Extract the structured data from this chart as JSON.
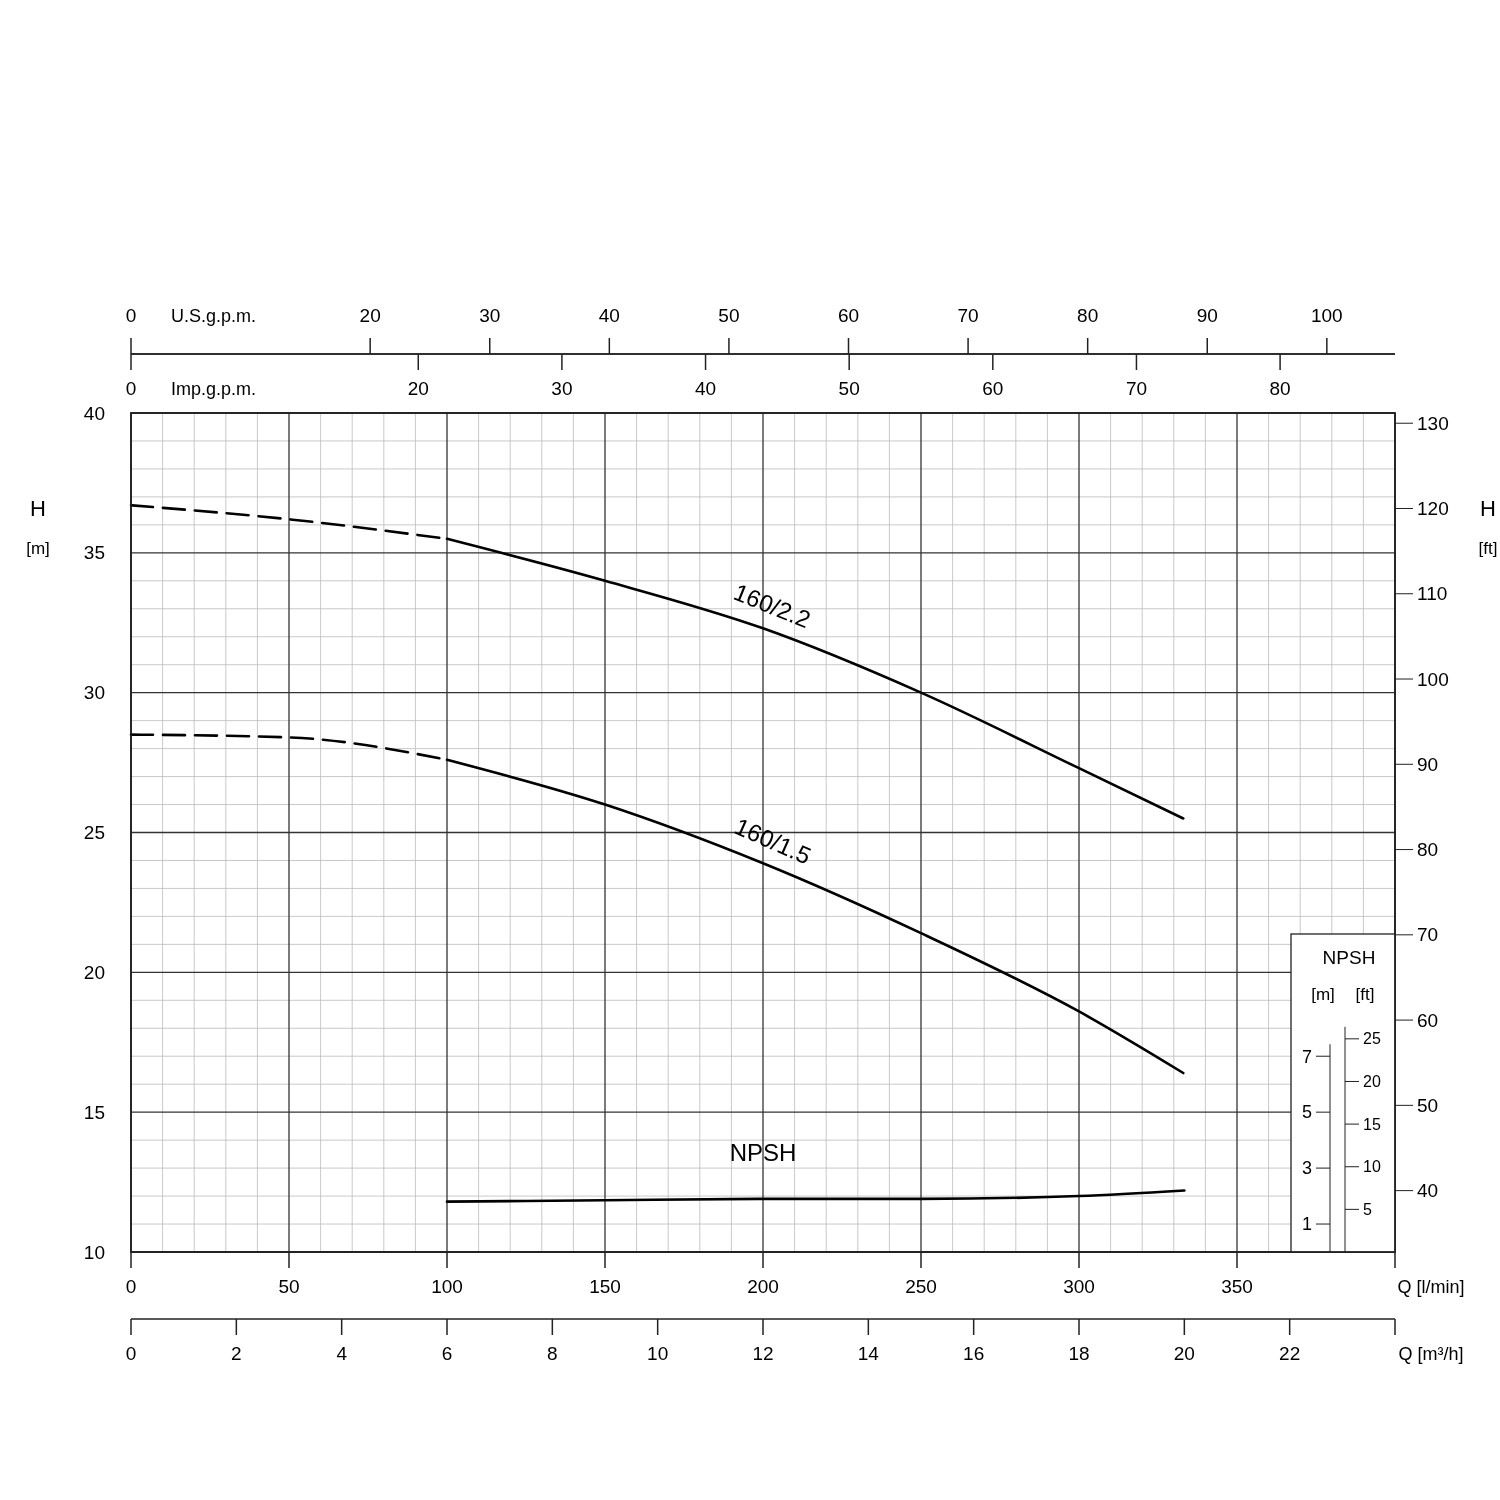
{
  "chart_data": [
    {
      "type": "line",
      "xlabel": "Q [l/min]",
      "x2label": "U.S.g.p.m.",
      "ylabel": "H [m]",
      "y2label": "H [ft]",
      "xlim": [
        0,
        400
      ],
      "xticks": [
        0,
        50,
        100,
        150,
        200,
        250,
        300,
        350,
        {
          "value": 400,
          "label": null
        }
      ],
      "ylim": [
        10,
        40
      ],
      "yticks": [
        10,
        15,
        20,
        25,
        30,
        35,
        40
      ],
      "y2lim": [
        32.8,
        131.2
      ],
      "y2ticks": [
        40,
        50,
        60,
        70,
        80,
        90,
        100,
        110,
        120,
        130
      ],
      "x2lim": [
        0,
        105.7
      ],
      "x2ticks": [
        0,
        20,
        30,
        40,
        50,
        60,
        70,
        80,
        90,
        100
      ],
      "grid": true,
      "series": [
        {
          "x": [
            0,
            50,
            100
          ],
          "values": [
            36.7,
            36.2,
            35.5
          ],
          "color": "#000000",
          "line_style": "dashed"
        },
        {
          "name": "160/2.2",
          "x": [
            100,
            150,
            200,
            250,
            300,
            333
          ],
          "values": [
            35.5,
            34.0,
            32.3,
            30.0,
            27.3,
            25.5
          ],
          "color": "#000000",
          "line_style": "solid"
        },
        {
          "x": [
            0,
            50,
            100
          ],
          "values": [
            28.5,
            28.4,
            27.6
          ],
          "color": "#000000",
          "line_style": "dashed"
        },
        {
          "name": "160/1.5",
          "x": [
            100,
            150,
            200,
            250,
            300,
            333
          ],
          "values": [
            27.6,
            26.0,
            23.9,
            21.4,
            18.6,
            16.4
          ],
          "color": "#000000",
          "line_style": "solid"
        }
      ]
    },
    {
      "type": "line",
      "title": "NPSH",
      "xlabel": "Q [m³/h]",
      "x2label": "Imp.g.p.m.",
      "ylabel": "[m]",
      "y2label": "[ft]",
      "xlim": [
        0,
        24
      ],
      "xticks": [
        0,
        2,
        4,
        6,
        8,
        10,
        12,
        14,
        16,
        18,
        20,
        22,
        {
          "value": 24,
          "label": null
        }
      ],
      "x2lim": [
        0,
        88
      ],
      "x2ticks": [
        0,
        20,
        30,
        40,
        50,
        60,
        70,
        80
      ],
      "ylim": [
        0,
        30
      ],
      "yticks": [
        1,
        3,
        5,
        7
      ],
      "y2lim": [
        0,
        98.4
      ],
      "y2ticks": [
        5,
        10,
        15,
        20,
        25
      ],
      "series": [
        {
          "name": "NPSH",
          "x": [
            6,
            9,
            12,
            15,
            18,
            20
          ],
          "values": [
            1.8,
            1.85,
            1.9,
            1.9,
            2.0,
            2.2
          ],
          "color": "#000000",
          "line_style": "solid"
        }
      ]
    }
  ]
}
